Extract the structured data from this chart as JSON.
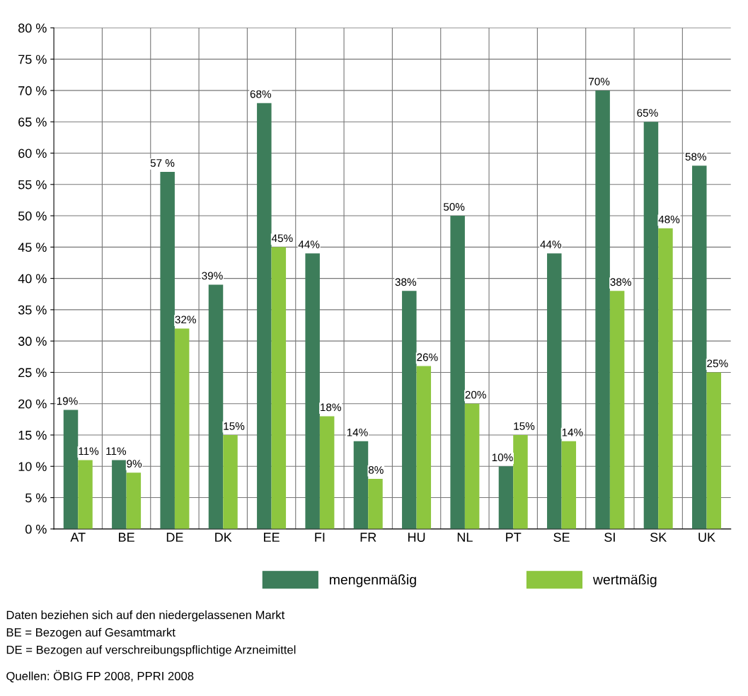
{
  "chart_data": {
    "type": "bar",
    "categories": [
      "AT",
      "BE",
      "DE",
      "DK",
      "EE",
      "FI",
      "FR",
      "HU",
      "NL",
      "PT",
      "SE",
      "SI",
      "SK",
      "UK"
    ],
    "series": [
      {
        "name": "mengenmäßig",
        "color": "#3d7d5a",
        "values": [
          19,
          11,
          57,
          39,
          68,
          44,
          14,
          38,
          50,
          10,
          44,
          70,
          65,
          58
        ],
        "value_labels": [
          "19%",
          "11%",
          "57 %",
          "39%",
          "68%",
          "44%",
          "14%",
          "38%",
          "50%",
          "10%",
          "44%",
          "70%",
          "65%",
          "58%"
        ]
      },
      {
        "name": "wertmäßig",
        "color": "#8dc63f",
        "values": [
          11,
          9,
          32,
          15,
          45,
          18,
          8,
          26,
          20,
          15,
          14,
          38,
          48,
          25
        ],
        "value_labels": [
          "11%",
          "9%",
          "32%",
          "15%",
          "45%",
          "18%",
          "8%",
          "26%",
          "20%",
          "15%",
          "14%",
          "38%",
          "48%",
          "25%"
        ]
      }
    ],
    "ylim": [
      0,
      80
    ],
    "yticks": [
      {
        "value": 0,
        "label": "0 %"
      },
      {
        "value": 5,
        "label": "5 %"
      },
      {
        "value": 10,
        "label": "10 %"
      },
      {
        "value": 15,
        "label": "15 %"
      },
      {
        "value": 20,
        "label": "20 %"
      },
      {
        "value": 25,
        "label": "25 %"
      },
      {
        "value": 30,
        "label": "30 %"
      },
      {
        "value": 35,
        "label": "35 %"
      },
      {
        "value": 40,
        "label": "40 %"
      },
      {
        "value": 45,
        "label": "45 %"
      },
      {
        "value": 50,
        "label": "50 %"
      },
      {
        "value": 55,
        "label": "55 %"
      },
      {
        "value": 60,
        "label": "60 %"
      },
      {
        "value": 65,
        "label": "65 %"
      },
      {
        "value": 70,
        "label": "70 %"
      },
      {
        "value": 75,
        "label": "75 %"
      },
      {
        "value": 80,
        "label": "80 %"
      }
    ],
    "grid": true,
    "legend": "bottom",
    "annotations": [
      "Daten beziehen sich auf den niedergelassenen Markt",
      "BE = Bezogen auf Gesamtmarkt",
      "DE = Bezogen auf verschreibungspflichtige Arzneimittel",
      "Quellen: ÖBIG FP 2008, PPRI 2008"
    ]
  }
}
